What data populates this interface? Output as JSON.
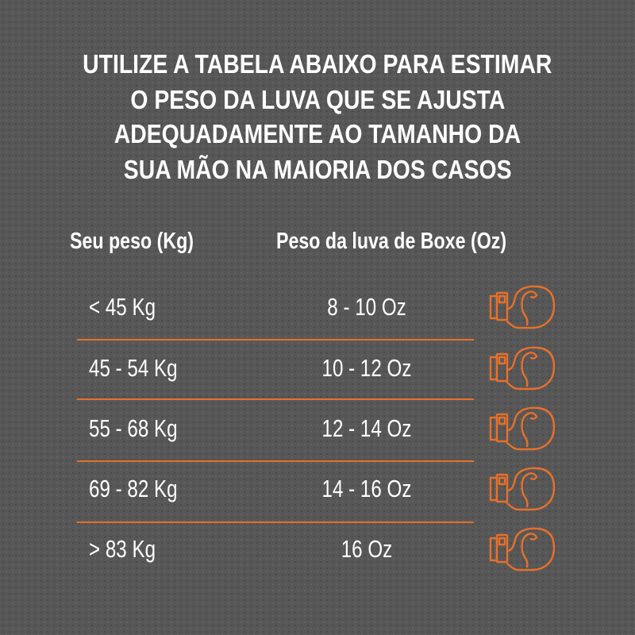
{
  "heading": [
    "UTILIZE A TABELA ABAIXO PARA ESTIMAR",
    "O PESO DA LUVA QUE SE AJUSTA",
    "ADEQUADAMENTE AO TAMANHO DA",
    "SUA MÃO NA MAIORIA DOS CASOS"
  ],
  "table": {
    "headers": [
      "Seu peso (Kg)",
      "Peso da luva de Boxe (Oz)"
    ],
    "rows": [
      {
        "weight": "< 45 Kg",
        "glove": "8 - 10 Oz",
        "icon": "boxing-glove-icon"
      },
      {
        "weight": "45 - 54 Kg",
        "glove": "10 - 12 Oz",
        "icon": "boxing-glove-icon"
      },
      {
        "weight": "55 - 68 Kg",
        "glove": "12 - 14 Oz",
        "icon": "boxing-glove-icon"
      },
      {
        "weight": "69 - 82 Kg",
        "glove": "14 - 16 Oz",
        "icon": "boxing-glove-icon"
      },
      {
        "weight": "> 83 Kg",
        "glove": "16 Oz",
        "icon": "boxing-glove-icon"
      }
    ]
  },
  "colors": {
    "accent": "#e8702a",
    "background": "#575757",
    "text": "#ffffff"
  }
}
